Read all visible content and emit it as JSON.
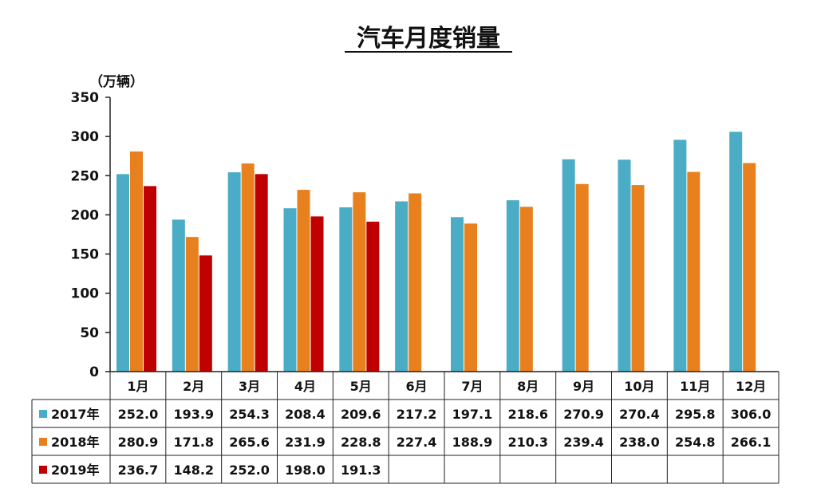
{
  "chart_data": {
    "type": "bar",
    "title": "汽车月度销量",
    "unit_label": "（万辆）",
    "ylim": [
      0,
      350
    ],
    "yticks": [
      "0",
      "50",
      "100",
      "150",
      "200",
      "250",
      "300",
      "350"
    ],
    "categories": [
      "1月",
      "2月",
      "3月",
      "4月",
      "5月",
      "6月",
      "7月",
      "8月",
      "9月",
      "10月",
      "11月",
      "12月"
    ],
    "grid": false,
    "legend": "table-rows-below",
    "series": [
      {
        "name": "2017年",
        "color": "#4bacc6",
        "values": [
          252.0,
          193.9,
          254.3,
          208.4,
          209.6,
          217.2,
          197.1,
          218.6,
          270.9,
          270.4,
          295.8,
          306.0
        ],
        "labels": [
          "252.0",
          "193.9",
          "254.3",
          "208.4",
          "209.6",
          "217.2",
          "197.1",
          "218.6",
          "270.9",
          "270.4",
          "295.8",
          "306.0"
        ]
      },
      {
        "name": "2018年",
        "color": "#e8801e",
        "values": [
          280.9,
          171.8,
          265.6,
          231.9,
          228.8,
          227.4,
          188.9,
          210.3,
          239.4,
          238.0,
          254.8,
          266.1
        ],
        "labels": [
          "280.9",
          "171.8",
          "265.6",
          "231.9",
          "228.8",
          "227.4",
          "188.9",
          "210.3",
          "239.4",
          "238.0",
          "254.8",
          "266.1"
        ]
      },
      {
        "name": "2019年",
        "color": "#c00000",
        "values": [
          236.7,
          148.2,
          252.0,
          198.0,
          191.3,
          null,
          null,
          null,
          null,
          null,
          null,
          null
        ],
        "labels": [
          "236.7",
          "148.2",
          "252.0",
          "198.0",
          "191.3",
          "",
          "",
          "",
          "",
          "",
          "",
          ""
        ]
      }
    ]
  }
}
